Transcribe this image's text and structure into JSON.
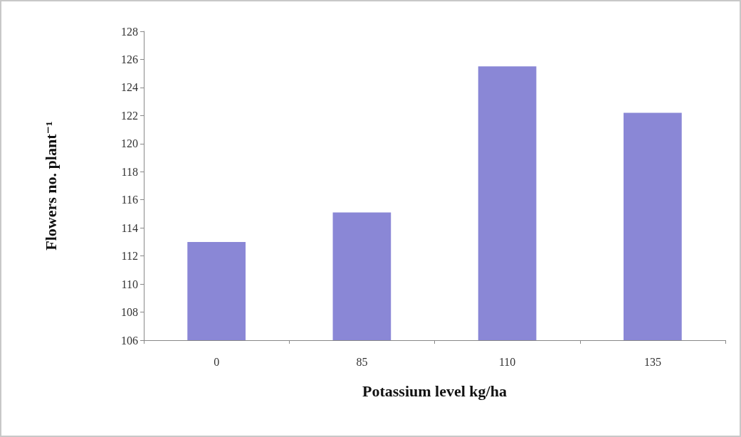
{
  "chart_data": {
    "type": "bar",
    "xlabel": "Potassium level kg/ha",
    "ylabel": "Flowers no. plant⁻¹",
    "categories": [
      "0",
      "85",
      "110",
      "135"
    ],
    "values": [
      113.0,
      115.1,
      125.5,
      122.2
    ],
    "color": "#8a87d6",
    "ylim": [
      106,
      128
    ],
    "yticks": [
      106,
      108,
      110,
      112,
      114,
      116,
      118,
      120,
      122,
      124,
      126,
      128
    ],
    "grid": false
  }
}
